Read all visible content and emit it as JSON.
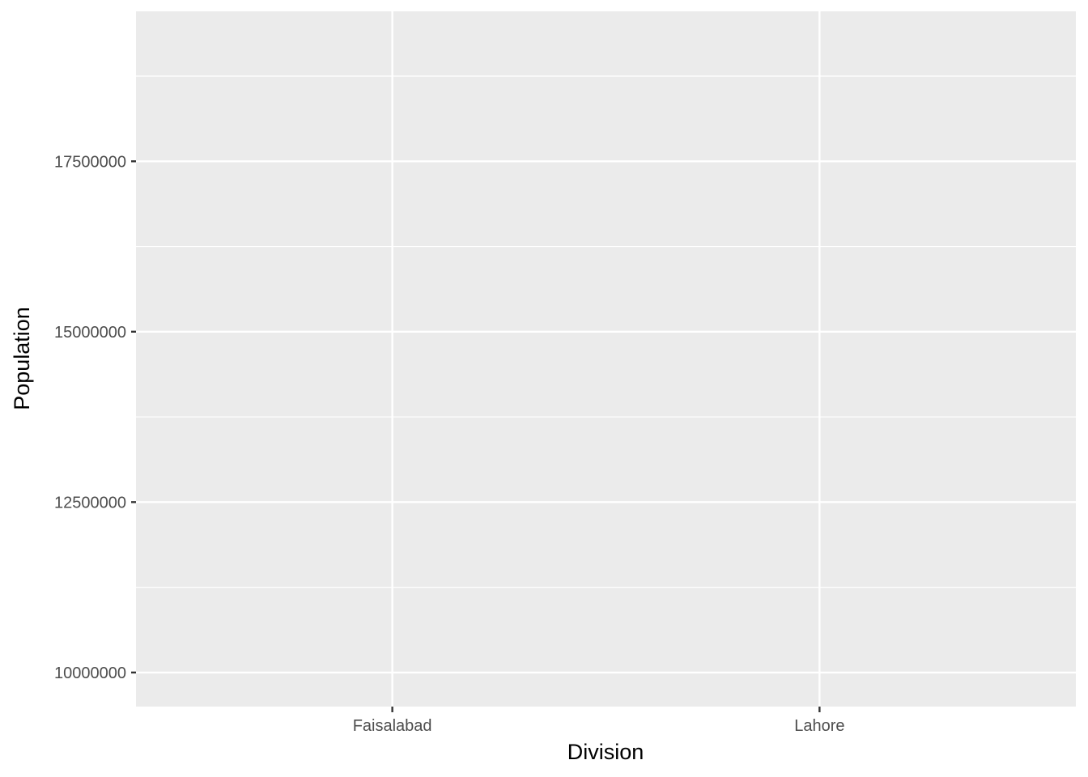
{
  "chart_data": {
    "type": "bar",
    "title": "",
    "xlabel": "Division",
    "ylabel": "Population",
    "categories": [
      "Faisalabad",
      "Lahore"
    ],
    "ylim": [
      9500000,
      19700000
    ],
    "y_ticks": [
      {
        "value": 10000000,
        "label": "10000000"
      },
      {
        "value": 12500000,
        "label": "12500000"
      },
      {
        "value": 15000000,
        "label": "15000000"
      },
      {
        "value": 17500000,
        "label": "17500000"
      }
    ],
    "y_minor_ticks": [
      11250000,
      13750000,
      16250000,
      18750000
    ],
    "grid": true,
    "legend": "none",
    "colors": {
      "panel_background": "#ebebeb",
      "grid_line": "#ffffff",
      "tick_mark": "#333333",
      "tick_text": "#4d4d4d",
      "title_text": "#000000"
    }
  }
}
